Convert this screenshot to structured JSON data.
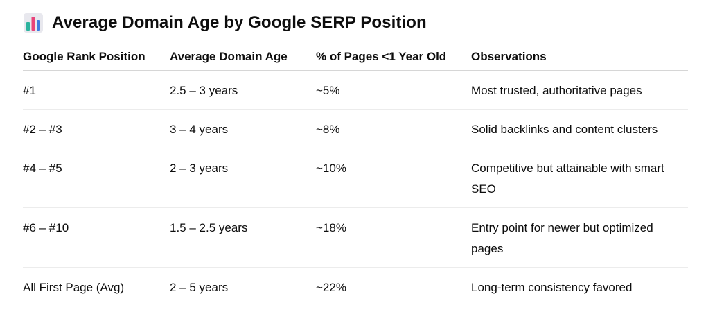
{
  "heading": {
    "icon": "bar-chart-icon",
    "title": "Average Domain Age by Google SERP Position"
  },
  "table": {
    "headers": [
      "Google Rank Position",
      "Average Domain Age",
      "% of Pages <1 Year Old",
      "Observations"
    ],
    "rows": [
      [
        "#1",
        "2.5 – 3 years",
        "~5%",
        "Most trusted, authoritative pages"
      ],
      [
        "#2 – #3",
        "3 – 4 years",
        "~8%",
        "Solid backlinks and content clusters"
      ],
      [
        "#4 – #5",
        "2 – 3 years",
        "~10%",
        "Competitive but attainable with smart SEO"
      ],
      [
        "#6 – #10",
        "1.5 – 2.5 years",
        "~18%",
        "Entry point for newer but optimized pages"
      ],
      [
        "All First Page (Avg)",
        "2 – 5 years",
        "~22%",
        "Long-term consistency favored"
      ]
    ]
  },
  "colors": {
    "icon_bg": "#e8e8ee",
    "icon_bar_teal": "#2db39e",
    "icon_bar_pink": "#e8437a",
    "icon_bar_blue": "#3d7be0"
  }
}
